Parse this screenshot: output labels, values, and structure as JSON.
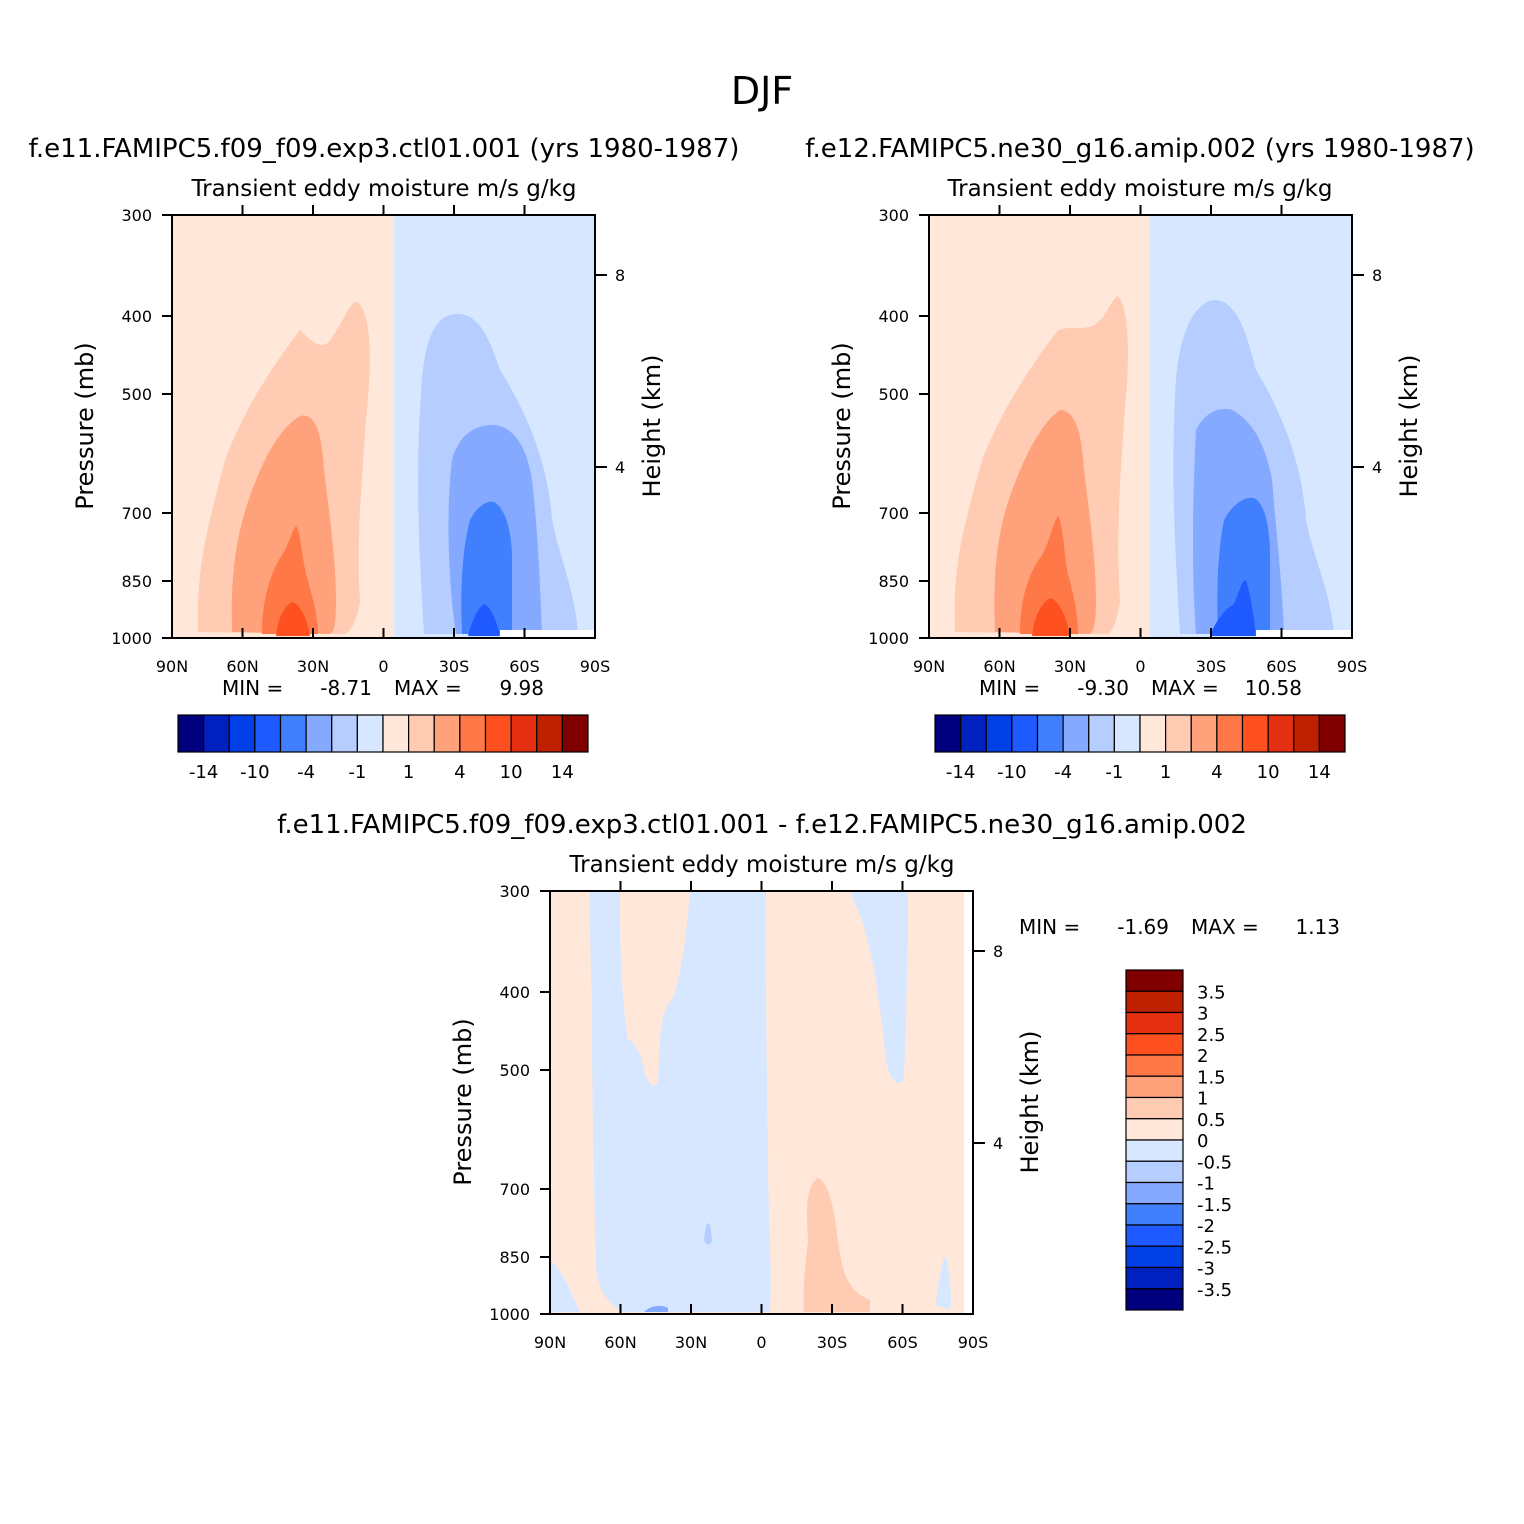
{
  "page_title": "DJF",
  "colors": {
    "levels14": [
      "#00007f",
      "#0020bf",
      "#0040e6",
      "#1e5aff",
      "#4080ff",
      "#84a9ff",
      "#b5cdff",
      "#d6e7ff",
      "#ffe8d9",
      "#ffccb3",
      "#ffa27b",
      "#ff7848",
      "#ff5020",
      "#e43010",
      "#bf2000",
      "#800000"
    ],
    "levels35": [
      "#00007f",
      "#0020bf",
      "#0040e6",
      "#1e5aff",
      "#4080ff",
      "#84a9ff",
      "#b5cdff",
      "#d6e7ff",
      "#ffe8d9",
      "#ffccb3",
      "#ffa27b",
      "#ff7848",
      "#ff5020",
      "#e43010",
      "#bf2000",
      "#800000"
    ]
  },
  "chart_data": [
    {
      "type": "contour",
      "title": "f.e11.FAMIPC5.f09_f09.exp3.ctl01.001 (yrs 1980-1987)",
      "subtitle": "Transient eddy moisture m/s g/kg",
      "xlabel": "",
      "ylabel": "Pressure (mb)",
      "ylabel_right": "Height (km)",
      "x_ticks": [
        "90N",
        "60N",
        "30N",
        "0",
        "30S",
        "60S",
        "90S"
      ],
      "y_ticks": [
        "300",
        "400",
        "500",
        "700",
        "850",
        "1000"
      ],
      "y_right_ticks": [
        "8",
        "4"
      ],
      "ylim": [
        1000,
        300
      ],
      "min_label": "MIN =",
      "min_value": "-8.71",
      "max_label": "MAX =",
      "max_value": "9.98",
      "colorbar": {
        "orientation": "horizontal",
        "labels": [
          "-14",
          "-10",
          "-4",
          "-1",
          "1",
          "4",
          "10",
          "14"
        ]
      },
      "max_data": 9.98,
      "min_data": -8.71
    },
    {
      "type": "contour",
      "title": "f.e12.FAMIPC5.ne30_g16.amip.002 (yrs 1980-1987)",
      "subtitle": "Transient eddy moisture m/s g/kg",
      "xlabel": "",
      "ylabel": "Pressure (mb)",
      "ylabel_right": "Height (km)",
      "x_ticks": [
        "90N",
        "60N",
        "30N",
        "0",
        "30S",
        "60S",
        "90S"
      ],
      "y_ticks": [
        "300",
        "400",
        "500",
        "700",
        "850",
        "1000"
      ],
      "y_right_ticks": [
        "8",
        "4"
      ],
      "ylim": [
        1000,
        300
      ],
      "min_label": "MIN =",
      "min_value": "-9.30",
      "max_label": "MAX =",
      "max_value": "10.58",
      "colorbar": {
        "orientation": "horizontal",
        "labels": [
          "-14",
          "-10",
          "-4",
          "-1",
          "1",
          "4",
          "10",
          "14"
        ]
      },
      "max_data": 10.58,
      "min_data": -9.3
    },
    {
      "type": "contour",
      "title": "f.e11.FAMIPC5.f09_f09.exp3.ctl01.001 - f.e12.FAMIPC5.ne30_g16.amip.002",
      "subtitle": "Transient eddy moisture m/s g/kg",
      "xlabel": "",
      "ylabel": "Pressure (mb)",
      "ylabel_right": "Height (km)",
      "x_ticks": [
        "90N",
        "60N",
        "30N",
        "0",
        "30S",
        "60S",
        "90S"
      ],
      "y_ticks": [
        "300",
        "400",
        "500",
        "700",
        "850",
        "1000"
      ],
      "y_right_ticks": [
        "8",
        "4"
      ],
      "ylim": [
        1000,
        300
      ],
      "min_label": "MIN =",
      "min_value": "-1.69",
      "max_label": "MAX =",
      "max_value": "1.13",
      "colorbar": {
        "orientation": "vertical",
        "labels": [
          "3.5",
          "3",
          "2.5",
          "2",
          "1.5",
          "1",
          "0.5",
          "0",
          "-0.5",
          "-1",
          "-1.5",
          "-2",
          "-2.5",
          "-3",
          "-3.5"
        ]
      },
      "max_data": 1.13,
      "min_data": -1.69
    }
  ]
}
